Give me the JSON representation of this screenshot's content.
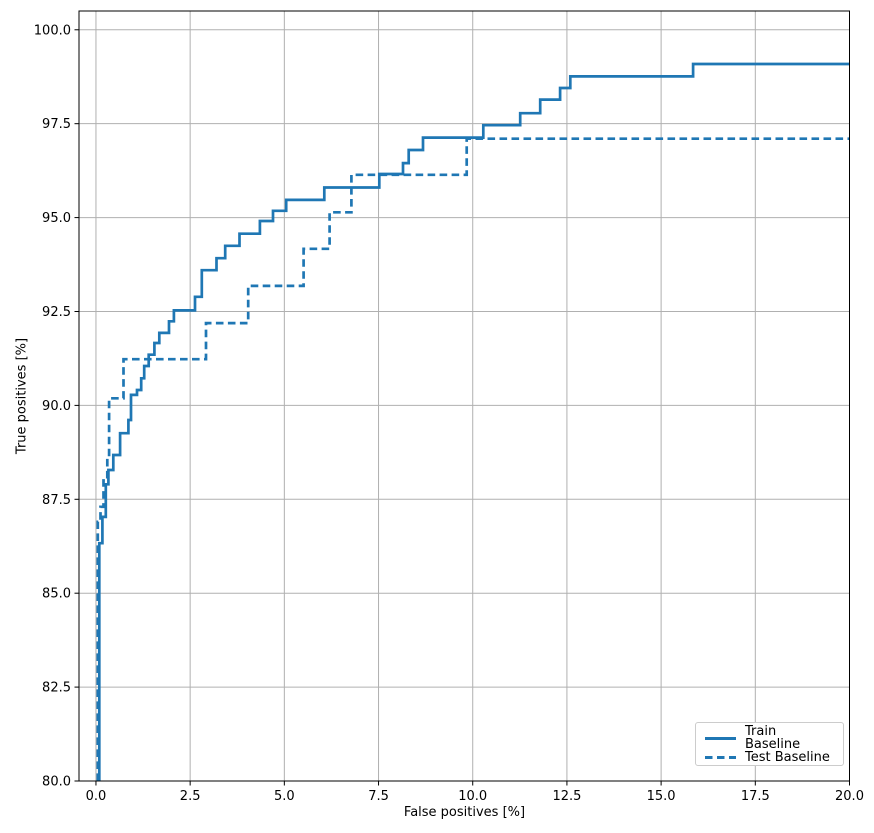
{
  "chart_data": {
    "type": "line",
    "title": "",
    "xlabel": "False positives [%]",
    "ylabel": "True positives [%]",
    "xlim": [
      -0.45,
      20
    ],
    "ylim": [
      80,
      100.5
    ],
    "xticks": [
      0,
      2.5,
      5,
      7.5,
      10,
      12.5,
      15,
      17.5,
      20
    ],
    "xtick_labels": [
      "0.0",
      "2.5",
      "5.0",
      "7.5",
      "10.0",
      "12.5",
      "15.0",
      "17.5",
      "20.0"
    ],
    "yticks": [
      80,
      82.5,
      85,
      87.5,
      90,
      92.5,
      95,
      97.5,
      100
    ],
    "ytick_labels": [
      "80.0",
      "82.5",
      "85.0",
      "87.5",
      "90.0",
      "92.5",
      "95.0",
      "97.5",
      "100.0"
    ],
    "grid": true,
    "legend_position": "lower right",
    "line_color": "#1f77b4",
    "grid_color": "#b0b0b0",
    "series": [
      {
        "name": "Train Baseline",
        "style": "solid",
        "points": [
          [
            0.09,
            80
          ],
          [
            0.09,
            86.33
          ],
          [
            0.17,
            86.33
          ],
          [
            0.17,
            87.03
          ],
          [
            0.26,
            87.03
          ],
          [
            0.26,
            87.9
          ],
          [
            0.33,
            87.9
          ],
          [
            0.33,
            88.28
          ],
          [
            0.46,
            88.28
          ],
          [
            0.46,
            88.68
          ],
          [
            0.64,
            88.68
          ],
          [
            0.64,
            89.26
          ],
          [
            0.86,
            89.26
          ],
          [
            0.86,
            89.61
          ],
          [
            0.93,
            89.61
          ],
          [
            0.93,
            90.28
          ],
          [
            1.09,
            90.28
          ],
          [
            1.09,
            90.41
          ],
          [
            1.2,
            90.41
          ],
          [
            1.2,
            90.72
          ],
          [
            1.28,
            90.72
          ],
          [
            1.28,
            91.05
          ],
          [
            1.4,
            91.05
          ],
          [
            1.4,
            91.35
          ],
          [
            1.55,
            91.35
          ],
          [
            1.55,
            91.66
          ],
          [
            1.68,
            91.66
          ],
          [
            1.68,
            91.93
          ],
          [
            1.94,
            91.93
          ],
          [
            1.94,
            92.24
          ],
          [
            2.07,
            92.24
          ],
          [
            2.07,
            92.53
          ],
          [
            2.63,
            92.53
          ],
          [
            2.63,
            92.89
          ],
          [
            2.81,
            92.89
          ],
          [
            2.81,
            93.6
          ],
          [
            3.2,
            93.6
          ],
          [
            3.2,
            93.92
          ],
          [
            3.43,
            93.92
          ],
          [
            3.43,
            94.25
          ],
          [
            3.81,
            94.25
          ],
          [
            3.81,
            94.57
          ],
          [
            4.35,
            94.57
          ],
          [
            4.35,
            94.91
          ],
          [
            4.7,
            94.91
          ],
          [
            4.7,
            95.18
          ],
          [
            5.05,
            95.18
          ],
          [
            5.05,
            95.47
          ],
          [
            6.06,
            95.47
          ],
          [
            6.06,
            95.8
          ],
          [
            7.52,
            95.8
          ],
          [
            7.52,
            96.16
          ],
          [
            8.15,
            96.16
          ],
          [
            8.15,
            96.45
          ],
          [
            8.3,
            96.45
          ],
          [
            8.3,
            96.8
          ],
          [
            8.68,
            96.8
          ],
          [
            8.68,
            97.13
          ],
          [
            10.28,
            97.13
          ],
          [
            10.28,
            97.46
          ],
          [
            11.26,
            97.46
          ],
          [
            11.26,
            97.78
          ],
          [
            11.79,
            97.78
          ],
          [
            11.79,
            98.14
          ],
          [
            12.32,
            98.14
          ],
          [
            12.32,
            98.45
          ],
          [
            12.59,
            98.45
          ],
          [
            12.59,
            98.76
          ],
          [
            15.85,
            98.76
          ],
          [
            15.85,
            99.09
          ],
          [
            20,
            99.09
          ]
        ]
      },
      {
        "name": "Test Baseline",
        "style": "dashed",
        "points": [
          [
            0.05,
            80
          ],
          [
            0.05,
            86.9
          ],
          [
            0.12,
            86.9
          ],
          [
            0.12,
            87.3
          ],
          [
            0.2,
            87.3
          ],
          [
            0.2,
            88.0
          ],
          [
            0.3,
            88.0
          ],
          [
            0.3,
            88.6
          ],
          [
            0.35,
            88.6
          ],
          [
            0.35,
            90.19
          ],
          [
            0.73,
            90.19
          ],
          [
            0.73,
            91.23
          ],
          [
            2.92,
            91.23
          ],
          [
            2.92,
            92.19
          ],
          [
            4.04,
            92.19
          ],
          [
            4.04,
            93.18
          ],
          [
            5.51,
            93.18
          ],
          [
            5.51,
            94.17
          ],
          [
            6.2,
            94.17
          ],
          [
            6.2,
            95.14
          ],
          [
            6.78,
            95.14
          ],
          [
            6.78,
            96.14
          ],
          [
            9.84,
            96.14
          ],
          [
            9.84,
            97.1
          ],
          [
            20,
            97.1
          ]
        ]
      }
    ]
  }
}
